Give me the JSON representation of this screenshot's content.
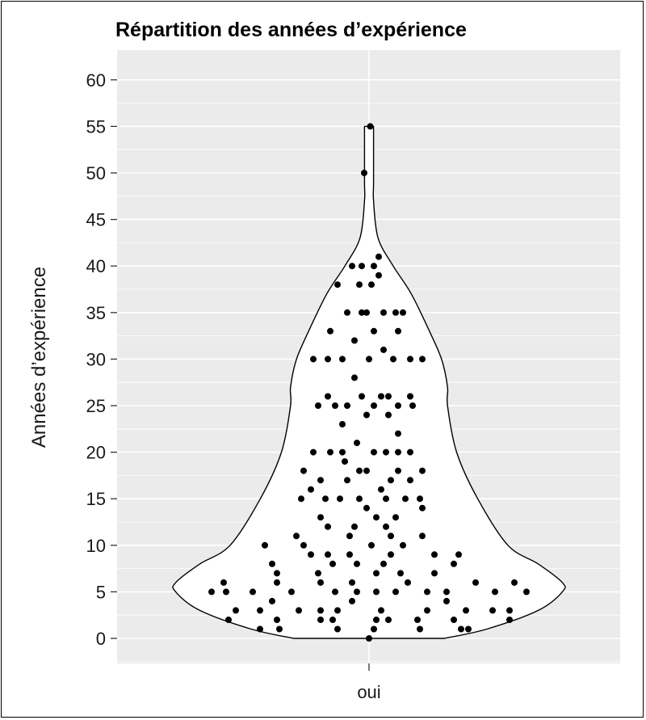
{
  "chart_data": {
    "type": "violin",
    "title": "Répartition des années d’expérience",
    "xlabel": "",
    "ylabel": "Années d’expérience",
    "categories": [
      "oui"
    ],
    "ylim": [
      -2.5,
      63
    ],
    "yticks": [
      0,
      5,
      10,
      15,
      20,
      25,
      30,
      35,
      40,
      45,
      50,
      55,
      60
    ],
    "grid": true,
    "density_profile": [
      {
        "y": 0,
        "half_width": 0.25
      },
      {
        "y": 1,
        "half_width": 0.39
      },
      {
        "y": 3,
        "half_width": 0.56
      },
      {
        "y": 5,
        "half_width": 0.64
      },
      {
        "y": 6,
        "half_width": 0.64
      },
      {
        "y": 8,
        "half_width": 0.56
      },
      {
        "y": 10,
        "half_width": 0.46
      },
      {
        "y": 15,
        "half_width": 0.36
      },
      {
        "y": 20,
        "half_width": 0.29
      },
      {
        "y": 25,
        "half_width": 0.26
      },
      {
        "y": 27,
        "half_width": 0.26
      },
      {
        "y": 30,
        "half_width": 0.24
      },
      {
        "y": 33,
        "half_width": 0.2
      },
      {
        "y": 37,
        "half_width": 0.14
      },
      {
        "y": 40,
        "half_width": 0.08
      },
      {
        "y": 43,
        "half_width": 0.03
      },
      {
        "y": 47,
        "half_width": 0.015
      },
      {
        "y": 49,
        "half_width": 0.015
      },
      {
        "y": 55,
        "half_width": 0.015
      }
    ],
    "points": [
      {
        "x": 0.005,
        "y": 55
      },
      {
        "x": -0.02,
        "y": 50
      },
      {
        "x": 0.04,
        "y": 41
      },
      {
        "x": -0.07,
        "y": 40
      },
      {
        "x": -0.03,
        "y": 40
      },
      {
        "x": 0.02,
        "y": 40
      },
      {
        "x": 0.04,
        "y": 39
      },
      {
        "x": -0.13,
        "y": 38
      },
      {
        "x": -0.04,
        "y": 38
      },
      {
        "x": 0.01,
        "y": 38
      },
      {
        "x": -0.09,
        "y": 35
      },
      {
        "x": -0.03,
        "y": 35
      },
      {
        "x": -0.01,
        "y": 35
      },
      {
        "x": 0.06,
        "y": 35
      },
      {
        "x": 0.11,
        "y": 35
      },
      {
        "x": 0.14,
        "y": 35
      },
      {
        "x": -0.16,
        "y": 33
      },
      {
        "x": 0.02,
        "y": 33
      },
      {
        "x": 0.12,
        "y": 33
      },
      {
        "x": -0.06,
        "y": 32
      },
      {
        "x": 0.06,
        "y": 31
      },
      {
        "x": -0.23,
        "y": 30
      },
      {
        "x": -0.17,
        "y": 30
      },
      {
        "x": -0.11,
        "y": 30
      },
      {
        "x": 0.0,
        "y": 30
      },
      {
        "x": 0.1,
        "y": 30
      },
      {
        "x": 0.17,
        "y": 30
      },
      {
        "x": 0.22,
        "y": 30
      },
      {
        "x": -0.06,
        "y": 28
      },
      {
        "x": -0.17,
        "y": 26
      },
      {
        "x": -0.03,
        "y": 26
      },
      {
        "x": 0.05,
        "y": 26
      },
      {
        "x": 0.08,
        "y": 26
      },
      {
        "x": 0.17,
        "y": 26
      },
      {
        "x": -0.21,
        "y": 25
      },
      {
        "x": -0.14,
        "y": 25
      },
      {
        "x": -0.09,
        "y": 25
      },
      {
        "x": 0.02,
        "y": 25
      },
      {
        "x": 0.12,
        "y": 25
      },
      {
        "x": 0.18,
        "y": 25
      },
      {
        "x": -0.01,
        "y": 24
      },
      {
        "x": 0.08,
        "y": 24
      },
      {
        "x": -0.11,
        "y": 23
      },
      {
        "x": 0.12,
        "y": 22
      },
      {
        "x": -0.05,
        "y": 21
      },
      {
        "x": -0.23,
        "y": 20
      },
      {
        "x": -0.16,
        "y": 20
      },
      {
        "x": -0.11,
        "y": 20
      },
      {
        "x": 0.02,
        "y": 20
      },
      {
        "x": 0.07,
        "y": 20
      },
      {
        "x": 0.12,
        "y": 20
      },
      {
        "x": 0.17,
        "y": 20
      },
      {
        "x": -0.1,
        "y": 19
      },
      {
        "x": -0.27,
        "y": 18
      },
      {
        "x": -0.04,
        "y": 18
      },
      {
        "x": -0.01,
        "y": 18
      },
      {
        "x": 0.12,
        "y": 18
      },
      {
        "x": 0.22,
        "y": 18
      },
      {
        "x": -0.2,
        "y": 17
      },
      {
        "x": -0.09,
        "y": 17
      },
      {
        "x": 0.09,
        "y": 17
      },
      {
        "x": 0.17,
        "y": 17
      },
      {
        "x": -0.24,
        "y": 16
      },
      {
        "x": 0.05,
        "y": 16
      },
      {
        "x": -0.28,
        "y": 15
      },
      {
        "x": -0.18,
        "y": 15
      },
      {
        "x": -0.12,
        "y": 15
      },
      {
        "x": -0.04,
        "y": 15
      },
      {
        "x": 0.07,
        "y": 15
      },
      {
        "x": 0.15,
        "y": 15
      },
      {
        "x": 0.21,
        "y": 15
      },
      {
        "x": -0.01,
        "y": 14
      },
      {
        "x": 0.22,
        "y": 14
      },
      {
        "x": -0.2,
        "y": 13
      },
      {
        "x": 0.03,
        "y": 13
      },
      {
        "x": 0.11,
        "y": 13
      },
      {
        "x": -0.17,
        "y": 12
      },
      {
        "x": -0.06,
        "y": 12
      },
      {
        "x": 0.07,
        "y": 12
      },
      {
        "x": -0.3,
        "y": 11
      },
      {
        "x": -0.08,
        "y": 11
      },
      {
        "x": 0.09,
        "y": 11
      },
      {
        "x": 0.22,
        "y": 11
      },
      {
        "x": -0.27,
        "y": 10
      },
      {
        "x": 0.01,
        "y": 10
      },
      {
        "x": 0.14,
        "y": 10
      },
      {
        "x": -0.43,
        "y": 10
      },
      {
        "x": -0.24,
        "y": 9
      },
      {
        "x": -0.17,
        "y": 9
      },
      {
        "x": -0.08,
        "y": 9
      },
      {
        "x": 0.09,
        "y": 9
      },
      {
        "x": 0.27,
        "y": 9
      },
      {
        "x": 0.37,
        "y": 9
      },
      {
        "x": -0.4,
        "y": 8
      },
      {
        "x": -0.15,
        "y": 8
      },
      {
        "x": -0.05,
        "y": 8
      },
      {
        "x": 0.06,
        "y": 8
      },
      {
        "x": 0.35,
        "y": 8
      },
      {
        "x": -0.38,
        "y": 7
      },
      {
        "x": -0.21,
        "y": 7
      },
      {
        "x": 0.03,
        "y": 7
      },
      {
        "x": 0.13,
        "y": 7
      },
      {
        "x": 0.27,
        "y": 7
      },
      {
        "x": -0.6,
        "y": 6
      },
      {
        "x": -0.38,
        "y": 6
      },
      {
        "x": -0.2,
        "y": 6
      },
      {
        "x": -0.07,
        "y": 6
      },
      {
        "x": 0.16,
        "y": 6
      },
      {
        "x": 0.44,
        "y": 6
      },
      {
        "x": 0.6,
        "y": 6
      },
      {
        "x": -0.65,
        "y": 5
      },
      {
        "x": -0.59,
        "y": 5
      },
      {
        "x": -0.48,
        "y": 5
      },
      {
        "x": -0.32,
        "y": 5
      },
      {
        "x": -0.14,
        "y": 5
      },
      {
        "x": -0.05,
        "y": 5
      },
      {
        "x": 0.03,
        "y": 5
      },
      {
        "x": 0.11,
        "y": 5
      },
      {
        "x": 0.24,
        "y": 5
      },
      {
        "x": 0.32,
        "y": 5
      },
      {
        "x": 0.52,
        "y": 5
      },
      {
        "x": 0.65,
        "y": 5
      },
      {
        "x": -0.4,
        "y": 4
      },
      {
        "x": -0.07,
        "y": 4
      },
      {
        "x": 0.32,
        "y": 4
      },
      {
        "x": -0.55,
        "y": 3
      },
      {
        "x": -0.45,
        "y": 3
      },
      {
        "x": -0.29,
        "y": 3
      },
      {
        "x": -0.2,
        "y": 3
      },
      {
        "x": -0.13,
        "y": 3
      },
      {
        "x": 0.05,
        "y": 3
      },
      {
        "x": 0.24,
        "y": 3
      },
      {
        "x": 0.4,
        "y": 3
      },
      {
        "x": 0.51,
        "y": 3
      },
      {
        "x": 0.58,
        "y": 3
      },
      {
        "x": -0.58,
        "y": 2
      },
      {
        "x": -0.38,
        "y": 2
      },
      {
        "x": -0.2,
        "y": 2
      },
      {
        "x": -0.15,
        "y": 2
      },
      {
        "x": 0.03,
        "y": 2
      },
      {
        "x": 0.08,
        "y": 2
      },
      {
        "x": 0.2,
        "y": 2
      },
      {
        "x": 0.35,
        "y": 2
      },
      {
        "x": 0.58,
        "y": 2
      },
      {
        "x": -0.45,
        "y": 1
      },
      {
        "x": -0.37,
        "y": 1
      },
      {
        "x": -0.13,
        "y": 1
      },
      {
        "x": 0.02,
        "y": 1
      },
      {
        "x": 0.21,
        "y": 1
      },
      {
        "x": 0.38,
        "y": 1
      },
      {
        "x": 0.41,
        "y": 1
      },
      {
        "x": 0.0,
        "y": 0
      }
    ]
  }
}
